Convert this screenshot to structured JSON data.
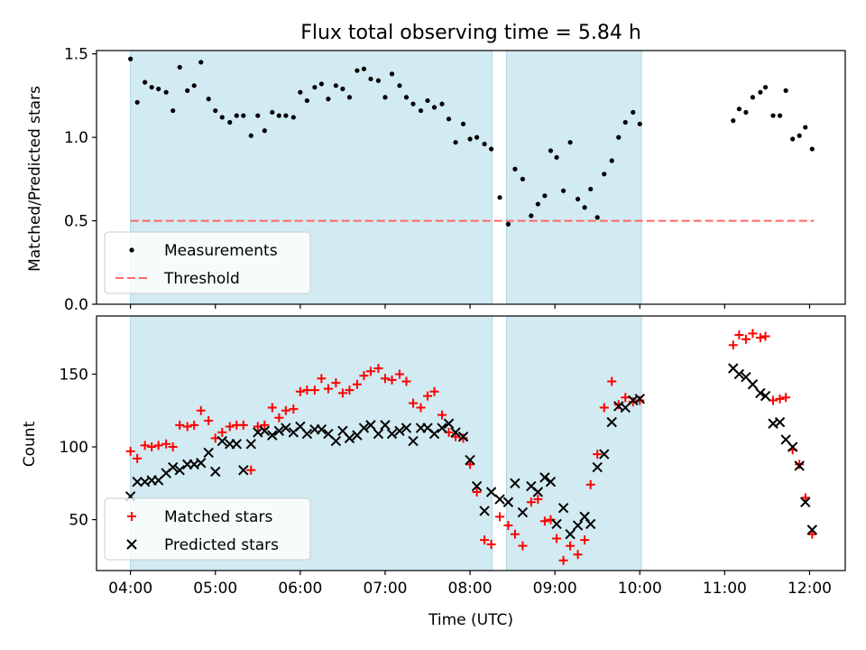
{
  "title": "Flux total observing time = 5.84 h",
  "x_axis": {
    "label": "Time (UTC)",
    "ticks": [
      "04:00",
      "05:00",
      "06:00",
      "07:00",
      "08:00",
      "09:00",
      "10:00",
      "11:00",
      "12:00"
    ]
  },
  "colors": {
    "shade": "#add8e6",
    "measurement": "#000000",
    "threshold": "#ff6666",
    "matched": "#ff0000",
    "predicted": "#000000"
  },
  "chart_data": [
    {
      "type": "scatter",
      "panel": "top",
      "ylabel": "Matched/Predicted stars",
      "ylim": [
        0,
        1.52
      ],
      "yticks": [
        "0.0",
        "0.5",
        "1.0",
        "1.5"
      ],
      "xlim": [
        3.6,
        12.42
      ],
      "shaded_intervals": [
        [
          4.0,
          8.26
        ],
        [
          8.43,
          10.02
        ]
      ],
      "threshold": {
        "name": "Threshold",
        "y": 0.5,
        "x_range": [
          4.0,
          12.05
        ]
      },
      "legend": {
        "position": "lower-left",
        "entries": [
          "Measurements",
          "Threshold"
        ]
      },
      "series": [
        {
          "name": "Measurements",
          "x": [
            4.0,
            4.08,
            4.17,
            4.25,
            4.33,
            4.42,
            4.5,
            4.58,
            4.67,
            4.75,
            4.83,
            4.92,
            5.0,
            5.08,
            5.17,
            5.25,
            5.33,
            5.42,
            5.5,
            5.58,
            5.67,
            5.75,
            5.83,
            5.92,
            6.0,
            6.08,
            6.17,
            6.25,
            6.33,
            6.42,
            6.5,
            6.58,
            6.67,
            6.75,
            6.83,
            6.92,
            7.0,
            7.08,
            7.17,
            7.25,
            7.33,
            7.42,
            7.5,
            7.58,
            7.67,
            7.75,
            7.83,
            7.92,
            8.0,
            8.08,
            8.17,
            8.25,
            8.35,
            8.45,
            8.53,
            8.62,
            8.72,
            8.8,
            8.88,
            8.95,
            9.02,
            9.1,
            9.18,
            9.27,
            9.35,
            9.42,
            9.5,
            9.58,
            9.67,
            9.75,
            9.83,
            9.92,
            10.0,
            11.1,
            11.17,
            11.25,
            11.33,
            11.42,
            11.48,
            11.57,
            11.65,
            11.72,
            11.8,
            11.88,
            11.95,
            12.03
          ],
          "y": [
            1.47,
            1.21,
            1.33,
            1.3,
            1.29,
            1.27,
            1.16,
            1.42,
            1.28,
            1.31,
            1.45,
            1.23,
            1.16,
            1.12,
            1.09,
            1.13,
            1.13,
            1.01,
            1.13,
            1.04,
            1.15,
            1.13,
            1.13,
            1.12,
            1.27,
            1.22,
            1.3,
            1.32,
            1.23,
            1.31,
            1.29,
            1.24,
            1.4,
            1.41,
            1.35,
            1.34,
            1.24,
            1.38,
            1.31,
            1.24,
            1.2,
            1.16,
            1.22,
            1.18,
            1.2,
            1.11,
            0.97,
            1.08,
            0.99,
            1.0,
            0.96,
            0.93,
            0.64,
            0.48,
            0.81,
            0.75,
            0.53,
            0.6,
            0.65,
            0.92,
            0.88,
            0.68,
            0.97,
            0.63,
            0.58,
            0.69,
            0.52,
            0.78,
            0.86,
            1.0,
            1.09,
            1.15,
            1.08,
            1.1,
            1.17,
            1.15,
            1.24,
            1.27,
            1.3,
            1.13,
            1.13,
            1.28,
            0.99,
            1.01,
            1.06,
            0.93
          ]
        }
      ]
    },
    {
      "type": "scatter",
      "panel": "bottom",
      "ylabel": "Count",
      "ylim": [
        15,
        190
      ],
      "yticks": [
        "50",
        "100",
        "150"
      ],
      "xlim": [
        3.6,
        12.42
      ],
      "shaded_intervals": [
        [
          4.0,
          8.26
        ],
        [
          8.43,
          10.02
        ]
      ],
      "legend": {
        "position": "lower-left",
        "entries": [
          "Matched stars",
          "Predicted stars"
        ]
      },
      "series": [
        {
          "name": "Matched stars",
          "marker": "plus",
          "x": [
            4.0,
            4.08,
            4.17,
            4.25,
            4.33,
            4.42,
            4.5,
            4.58,
            4.67,
            4.75,
            4.83,
            4.92,
            5.0,
            5.08,
            5.17,
            5.25,
            5.33,
            5.42,
            5.5,
            5.58,
            5.67,
            5.75,
            5.83,
            5.92,
            6.0,
            6.08,
            6.17,
            6.25,
            6.33,
            6.42,
            6.5,
            6.58,
            6.67,
            6.75,
            6.83,
            6.92,
            7.0,
            7.08,
            7.17,
            7.25,
            7.33,
            7.42,
            7.5,
            7.58,
            7.67,
            7.75,
            7.83,
            7.92,
            8.0,
            8.08,
            8.17,
            8.25,
            8.35,
            8.45,
            8.53,
            8.62,
            8.72,
            8.8,
            8.88,
            8.95,
            9.02,
            9.1,
            9.18,
            9.27,
            9.35,
            9.42,
            9.5,
            9.58,
            9.67,
            9.75,
            9.83,
            9.92,
            10.0,
            11.1,
            11.17,
            11.25,
            11.33,
            11.42,
            11.48,
            11.57,
            11.65,
            11.72,
            11.8,
            11.88,
            11.95,
            12.03
          ],
          "y": [
            97,
            92,
            101,
            100,
            101,
            102,
            100,
            115,
            114,
            115,
            125,
            118,
            106,
            110,
            114,
            115,
            115,
            84,
            114,
            115,
            127,
            120,
            125,
            126,
            138,
            139,
            139,
            147,
            140,
            144,
            137,
            139,
            143,
            149,
            152,
            154,
            147,
            146,
            150,
            145,
            130,
            127,
            135,
            138,
            122,
            110,
            107,
            106,
            88,
            69,
            36,
            33,
            52,
            46,
            40,
            32,
            62,
            64,
            49,
            50,
            37,
            22,
            32,
            26,
            36,
            74,
            95,
            127,
            145,
            129,
            134,
            131,
            132,
            170,
            177,
            174,
            178,
            175,
            176,
            132,
            133,
            134,
            98,
            88,
            65,
            40
          ],
          "note_tail": [
            176
          ]
        },
        {
          "name": "Predicted stars",
          "marker": "x",
          "x": [
            4.0,
            4.08,
            4.17,
            4.25,
            4.33,
            4.42,
            4.5,
            4.58,
            4.67,
            4.75,
            4.83,
            4.92,
            5.0,
            5.08,
            5.17,
            5.25,
            5.33,
            5.42,
            5.5,
            5.58,
            5.67,
            5.75,
            5.83,
            5.92,
            6.0,
            6.08,
            6.17,
            6.25,
            6.33,
            6.42,
            6.5,
            6.58,
            6.67,
            6.75,
            6.83,
            6.92,
            7.0,
            7.08,
            7.17,
            7.25,
            7.33,
            7.42,
            7.5,
            7.58,
            7.67,
            7.75,
            7.83,
            7.92,
            8.0,
            8.08,
            8.17,
            8.25,
            8.35,
            8.45,
            8.53,
            8.62,
            8.72,
            8.8,
            8.88,
            8.95,
            9.02,
            9.1,
            9.18,
            9.27,
            9.35,
            9.42,
            9.5,
            9.58,
            9.67,
            9.75,
            9.83,
            9.92,
            10.0,
            11.1,
            11.17,
            11.25,
            11.33,
            11.42,
            11.48,
            11.57,
            11.65,
            11.72,
            11.8,
            11.88,
            11.95,
            12.03
          ],
          "y": [
            66,
            76,
            76,
            77,
            77,
            82,
            86,
            84,
            88,
            88,
            89,
            96,
            83,
            104,
            102,
            102,
            84,
            102,
            110,
            111,
            108,
            111,
            113,
            110,
            114,
            109,
            112,
            112,
            109,
            104,
            111,
            106,
            108,
            113,
            115,
            109,
            115,
            109,
            111,
            113,
            104,
            113,
            113,
            109,
            113,
            116,
            110,
            107,
            91,
            73,
            56,
            69,
            64,
            62,
            75,
            55,
            73,
            69,
            79,
            76,
            47,
            58,
            40,
            46,
            52,
            47,
            86,
            95,
            117,
            128,
            127,
            132,
            133,
            154,
            150,
            148,
            143,
            137,
            135,
            116,
            117,
            105,
            100,
            87,
            62,
            43
          ]
        }
      ]
    }
  ]
}
